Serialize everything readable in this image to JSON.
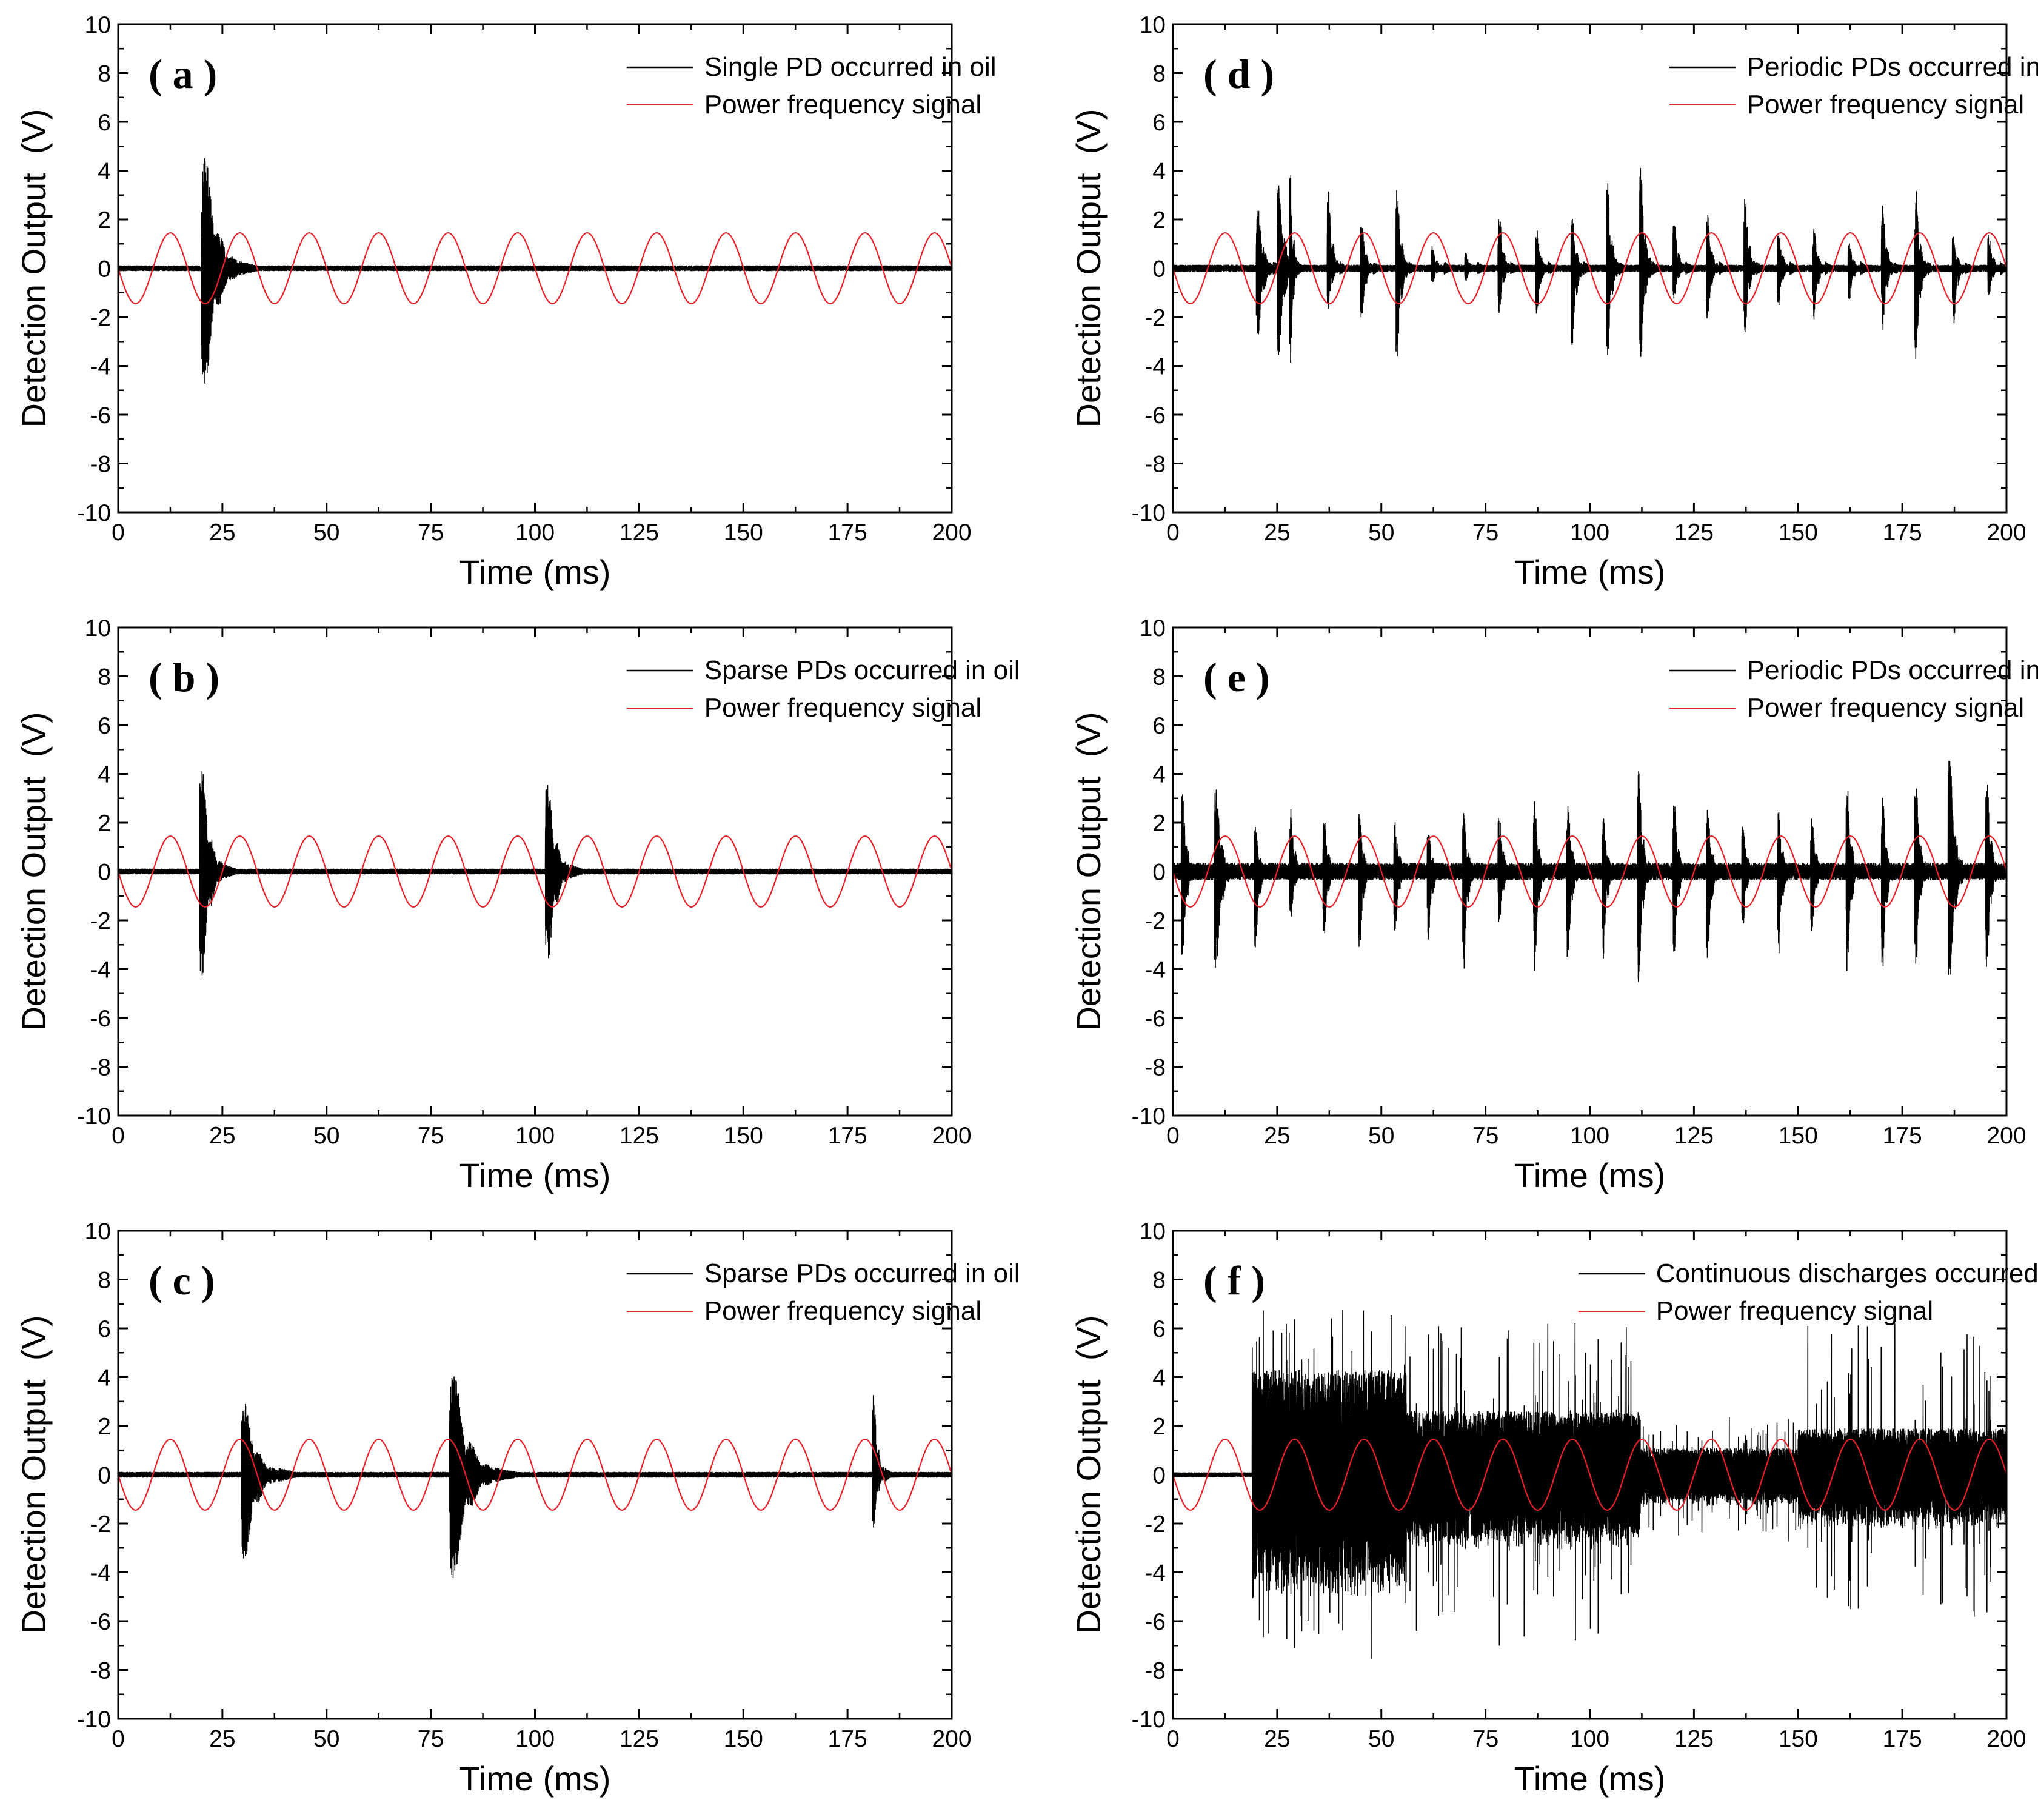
{
  "figure": {
    "panel_order": [
      "a",
      "d",
      "b",
      "e",
      "c",
      "f"
    ]
  },
  "chart_data": [
    {
      "id": "a",
      "type": "line",
      "panel_label": "( a )",
      "xlabel": "Time (ms)",
      "ylabel": "Detection Output  (V)",
      "xlim": [
        0,
        200
      ],
      "ylim": [
        -10,
        10
      ],
      "xticks": [
        0,
        25,
        50,
        75,
        100,
        125,
        150,
        175,
        200
      ],
      "yticks": [
        -10,
        -8,
        -6,
        -4,
        -2,
        0,
        2,
        4,
        6,
        8,
        10
      ],
      "legend_position": "top-right",
      "series": [
        {
          "name": "Single PD occurred in oil",
          "color": "#000000",
          "kind": "pd",
          "noise": 0.12,
          "bursts": [
            {
              "t": 20,
              "dur": 9,
              "pos": 7.0,
              "neg": -7.3
            }
          ]
        },
        {
          "name": "Power frequency signal",
          "color": "#e8202a",
          "kind": "sine",
          "amplitude": 1.45,
          "period_ms": 16.67,
          "phase": "-sin"
        }
      ]
    },
    {
      "id": "d",
      "type": "line",
      "panel_label": "( d )",
      "xlabel": "Time (ms)",
      "ylabel": "Detection Output  (V)",
      "xlim": [
        0,
        200
      ],
      "ylim": [
        -10,
        10
      ],
      "xticks": [
        0,
        25,
        50,
        75,
        100,
        125,
        150,
        175,
        200
      ],
      "yticks": [
        -10,
        -8,
        -6,
        -4,
        -2,
        0,
        2,
        4,
        6,
        8,
        10
      ],
      "legend_position": "top-right",
      "series": [
        {
          "name": "Periodic PDs occurred in oil",
          "color": "#000000",
          "kind": "pd",
          "noise": 0.15,
          "bursts": [
            {
              "t": 20,
              "dur": 4,
              "pos": 4.0,
              "neg": -4.4
            },
            {
              "t": 25,
              "dur": 4,
              "pos": 5.8,
              "neg": -5.5
            },
            {
              "t": 28,
              "dur": 2,
              "pos": 6.7,
              "neg": -6.1
            },
            {
              "t": 37,
              "dur": 3,
              "pos": 5.0,
              "neg": -2.8
            },
            {
              "t": 45,
              "dur": 3,
              "pos": 3.0,
              "neg": -3.2
            },
            {
              "t": 53.5,
              "dur": 3,
              "pos": 5.3,
              "neg": -6.0
            },
            {
              "t": 62,
              "dur": 3,
              "pos": 1.5,
              "neg": -1.0
            },
            {
              "t": 70,
              "dur": 3,
              "pos": 1.0,
              "neg": -0.8
            },
            {
              "t": 78,
              "dur": 3,
              "pos": 3.5,
              "neg": -2.8
            },
            {
              "t": 87,
              "dur": 3,
              "pos": 2.5,
              "neg": -3.2
            },
            {
              "t": 95.5,
              "dur": 3,
              "pos": 3.3,
              "neg": -5.2
            },
            {
              "t": 104,
              "dur": 3,
              "pos": 5.6,
              "neg": -5.8
            },
            {
              "t": 112,
              "dur": 3,
              "pos": 6.6,
              "neg": -5.8
            },
            {
              "t": 120,
              "dur": 3,
              "pos": 3.0,
              "neg": -2.0
            },
            {
              "t": 128,
              "dur": 3,
              "pos": 3.4,
              "neg": -3.4
            },
            {
              "t": 137,
              "dur": 3,
              "pos": 4.5,
              "neg": -4.2
            },
            {
              "t": 145,
              "dur": 3,
              "pos": 2.5,
              "neg": -2.4
            },
            {
              "t": 153.5,
              "dur": 3,
              "pos": 2.5,
              "neg": -3.2
            },
            {
              "t": 162,
              "dur": 3,
              "pos": 1.6,
              "neg": -2.0
            },
            {
              "t": 170,
              "dur": 3,
              "pos": 4.2,
              "neg": -4.0
            },
            {
              "t": 178,
              "dur": 3,
              "pos": 5.0,
              "neg": -5.9
            },
            {
              "t": 187,
              "dur": 3,
              "pos": 2.2,
              "neg": -3.6
            },
            {
              "t": 195.5,
              "dur": 3,
              "pos": 2.2,
              "neg": -1.8
            }
          ]
        },
        {
          "name": "Power frequency signal",
          "color": "#e8202a",
          "kind": "sine",
          "amplitude": 1.45,
          "period_ms": 16.67,
          "phase": "-sin"
        }
      ]
    },
    {
      "id": "b",
      "type": "line",
      "panel_label": "( b )",
      "xlabel": "Time (ms)",
      "ylabel": "Detection Output  (V)",
      "xlim": [
        0,
        200
      ],
      "ylim": [
        -10,
        10
      ],
      "xticks": [
        0,
        25,
        50,
        75,
        100,
        125,
        150,
        175,
        200
      ],
      "yticks": [
        -10,
        -8,
        -6,
        -4,
        -2,
        0,
        2,
        4,
        6,
        8,
        10
      ],
      "legend_position": "top-right",
      "series": [
        {
          "name": "Sparse PDs occurred in oil",
          "color": "#000000",
          "kind": "pd",
          "noise": 0.12,
          "bursts": [
            {
              "t": 19.5,
              "dur": 6,
              "pos": 6.7,
              "neg": -6.8
            },
            {
              "t": 102.5,
              "dur": 6,
              "pos": 5.7,
              "neg": -6.0
            }
          ]
        },
        {
          "name": "Power frequency signal",
          "color": "#e8202a",
          "kind": "sine",
          "amplitude": 1.45,
          "period_ms": 16.67,
          "phase": "-sin"
        }
      ]
    },
    {
      "id": "e",
      "type": "line",
      "panel_label": "( e )",
      "xlabel": "Time (ms)",
      "ylabel": "Detection Output  (V)",
      "xlim": [
        0,
        200
      ],
      "ylim": [
        -10,
        10
      ],
      "xticks": [
        0,
        25,
        50,
        75,
        100,
        125,
        150,
        175,
        200
      ],
      "yticks": [
        -10,
        -8,
        -6,
        -4,
        -2,
        0,
        2,
        4,
        6,
        8,
        10
      ],
      "legend_position": "top-right",
      "series": [
        {
          "name": "Periodic PDs occurred in oil",
          "color": "#000000",
          "kind": "pd",
          "noise": 0.35,
          "bursts": [
            {
              "t": 2,
              "dur": 3,
              "pos": 5.2,
              "neg": -6.0
            },
            {
              "t": 10,
              "dur": 4,
              "pos": 5.4,
              "neg": -6.6
            },
            {
              "t": 19.5,
              "dur": 3,
              "pos": 2.8,
              "neg": -4.8
            },
            {
              "t": 28,
              "dur": 3,
              "pos": 4.0,
              "neg": -3.0
            },
            {
              "t": 36,
              "dur": 3,
              "pos": 3.5,
              "neg": -4.0
            },
            {
              "t": 44.5,
              "dur": 3,
              "pos": 3.8,
              "neg": -5.2
            },
            {
              "t": 53,
              "dur": 3,
              "pos": 3.2,
              "neg": -4.0
            },
            {
              "t": 61,
              "dur": 3,
              "pos": 2.6,
              "neg": -4.3
            },
            {
              "t": 69.5,
              "dur": 3,
              "pos": 3.8,
              "neg": -6.3
            },
            {
              "t": 78,
              "dur": 3,
              "pos": 4.0,
              "neg": -3.6
            },
            {
              "t": 86.5,
              "dur": 3,
              "pos": 4.5,
              "neg": -6.3
            },
            {
              "t": 94.5,
              "dur": 3,
              "pos": 4.3,
              "neg": -5.8
            },
            {
              "t": 103,
              "dur": 3,
              "pos": 3.4,
              "neg": -5.5
            },
            {
              "t": 111.5,
              "dur": 3,
              "pos": 6.5,
              "neg": -7.1
            },
            {
              "t": 120,
              "dur": 3,
              "pos": 4.5,
              "neg": -5.5
            },
            {
              "t": 128,
              "dur": 3,
              "pos": 4.2,
              "neg": -5.6
            },
            {
              "t": 136.5,
              "dur": 3,
              "pos": 3.0,
              "neg": -3.4
            },
            {
              "t": 145,
              "dur": 3,
              "pos": 4.1,
              "neg": -5.6
            },
            {
              "t": 153,
              "dur": 3,
              "pos": 3.6,
              "neg": -3.8
            },
            {
              "t": 161.5,
              "dur": 3,
              "pos": 5.6,
              "neg": -6.3
            },
            {
              "t": 170,
              "dur": 3,
              "pos": 4.6,
              "neg": -6.2
            },
            {
              "t": 178,
              "dur": 3,
              "pos": 6.0,
              "neg": -6.3
            },
            {
              "t": 186,
              "dur": 4,
              "pos": 7.3,
              "neg": -7.5
            },
            {
              "t": 195,
              "dur": 3,
              "pos": 6.2,
              "neg": -6.3
            }
          ]
        },
        {
          "name": "Power frequency signal",
          "color": "#e8202a",
          "kind": "sine",
          "amplitude": 1.45,
          "period_ms": 16.67,
          "phase": "-sin"
        }
      ]
    },
    {
      "id": "c",
      "type": "line",
      "panel_label": "( c )",
      "xlabel": "Time (ms)",
      "ylabel": "Detection Output  (V)",
      "xlim": [
        0,
        200
      ],
      "ylim": [
        -10,
        10
      ],
      "xticks": [
        0,
        25,
        50,
        75,
        100,
        125,
        150,
        175,
        200
      ],
      "yticks": [
        -10,
        -8,
        -6,
        -4,
        -2,
        0,
        2,
        4,
        6,
        8,
        10
      ],
      "legend_position": "top-right",
      "series": [
        {
          "name": "Sparse PDs occurred in oil",
          "color": "#000000",
          "kind": "pd",
          "noise": 0.12,
          "bursts": [
            {
              "t": 29.5,
              "dur": 9,
              "pos": 4.5,
              "neg": -5.3
            },
            {
              "t": 79.5,
              "dur": 11,
              "pos": 6.3,
              "neg": -6.5
            },
            {
              "t": 181,
              "dur": 3,
              "pos": 5.2,
              "neg": -3.6
            }
          ]
        },
        {
          "name": "Power frequency signal",
          "color": "#e8202a",
          "kind": "sine",
          "amplitude": 1.45,
          "period_ms": 16.67,
          "phase": "-sin"
        }
      ]
    },
    {
      "id": "f",
      "type": "line",
      "panel_label": "( f )",
      "xlabel": "Time (ms)",
      "ylabel": "Detection Output  (V)",
      "xlim": [
        0,
        200
      ],
      "ylim": [
        -10,
        10
      ],
      "xticks": [
        0,
        25,
        50,
        75,
        100,
        125,
        150,
        175,
        200
      ],
      "yticks": [
        -10,
        -8,
        -6,
        -4,
        -2,
        0,
        2,
        4,
        6,
        8,
        10
      ],
      "legend_position": "top-right",
      "series": [
        {
          "name": "Continuous discharges occurred in oil",
          "color": "#000000",
          "kind": "continuous",
          "noise": 0.1,
          "segments": [
            {
              "t0": 19,
              "t1": 56,
              "amp": 4.3,
              "peak": 6.9
            },
            {
              "t0": 56,
              "t1": 112,
              "amp": 2.6,
              "peak": 6.2
            },
            {
              "t0": 112,
              "t1": 150,
              "amp": 1.1,
              "peak": 2.4
            },
            {
              "t0": 150,
              "t1": 200,
              "amp": 1.9,
              "peak": 6.3
            }
          ]
        },
        {
          "name": "Power frequency signal",
          "color": "#e8202a",
          "kind": "sine",
          "amplitude": 1.45,
          "period_ms": 16.67,
          "phase": "-sin"
        }
      ]
    }
  ]
}
